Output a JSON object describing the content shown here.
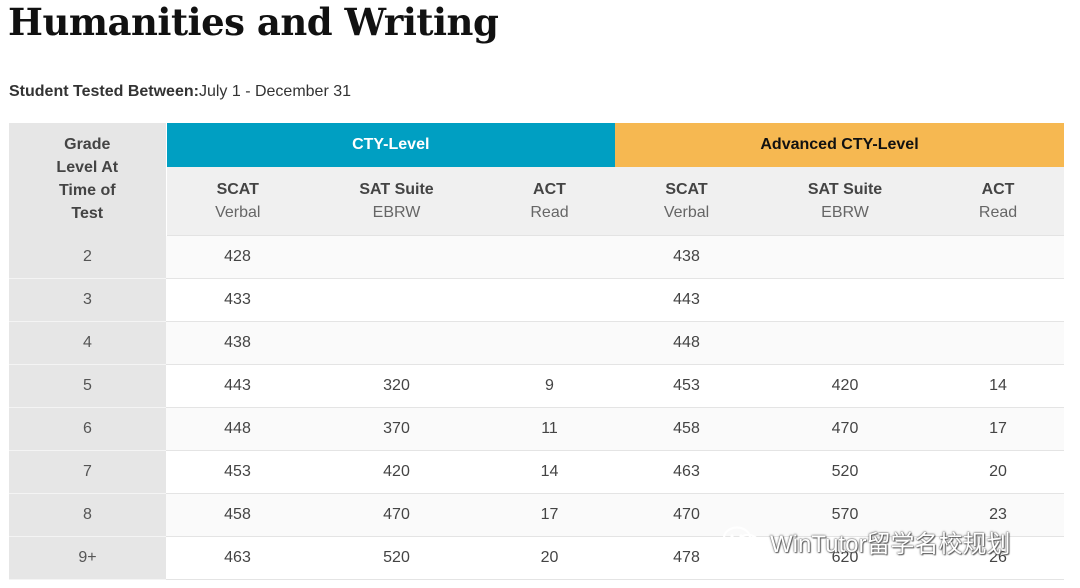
{
  "page": {
    "title": "Humanities and Writing",
    "tested_label": "Student Tested Between:",
    "tested_value": "July 1 - December 31"
  },
  "table": {
    "grade_header": [
      "Grade",
      "Level At",
      "Time of",
      "Test"
    ],
    "groups": [
      "CTY-Level",
      "Advanced CTY-Level"
    ],
    "group_colors": [
      "#009fc2",
      "#f6b851"
    ],
    "columns": [
      {
        "name": "SCAT",
        "sub": "Verbal"
      },
      {
        "name": "SAT Suite",
        "sub": "EBRW"
      },
      {
        "name": "ACT",
        "sub": "Read"
      },
      {
        "name": "SCAT",
        "sub": "Verbal"
      },
      {
        "name": "SAT Suite",
        "sub": "EBRW"
      },
      {
        "name": "ACT",
        "sub": "Read"
      }
    ],
    "rows": [
      {
        "grade": "2",
        "values": [
          "428",
          "",
          "",
          "438",
          "",
          ""
        ]
      },
      {
        "grade": "3",
        "values": [
          "433",
          "",
          "",
          "443",
          "",
          ""
        ]
      },
      {
        "grade": "4",
        "values": [
          "438",
          "",
          "",
          "448",
          "",
          ""
        ]
      },
      {
        "grade": "5",
        "values": [
          "443",
          "320",
          "9",
          "453",
          "420",
          "14"
        ]
      },
      {
        "grade": "6",
        "values": [
          "448",
          "370",
          "11",
          "458",
          "470",
          "17"
        ]
      },
      {
        "grade": "7",
        "values": [
          "453",
          "420",
          "14",
          "463",
          "520",
          "20"
        ]
      },
      {
        "grade": "8",
        "values": [
          "458",
          "470",
          "17",
          "470",
          "570",
          "23"
        ]
      },
      {
        "grade": "9+",
        "values": [
          "463",
          "520",
          "20",
          "478",
          "620",
          "26"
        ]
      }
    ]
  },
  "watermark": {
    "text": "WinTutor留学名校规划",
    "icon": "wechat-icon"
  }
}
